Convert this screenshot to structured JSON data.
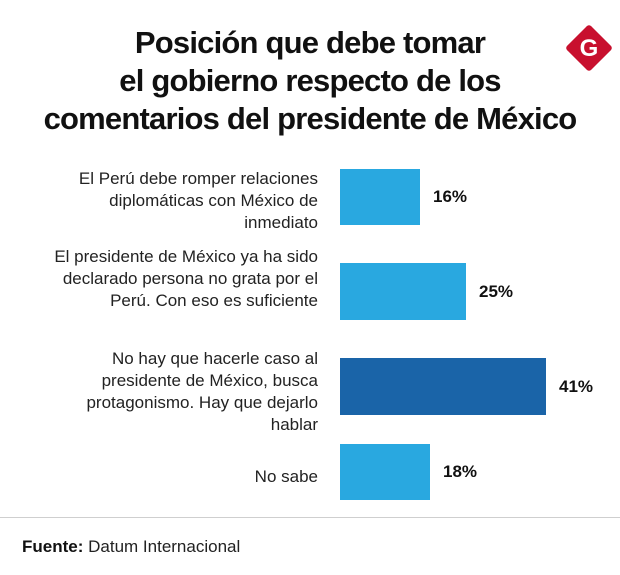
{
  "header": {
    "title_lines": [
      "Posición que debe tomar",
      "el gobierno respecto de los",
      "comentarios del presidente de México"
    ],
    "logo_letter": "G",
    "logo_color": "#c8102e"
  },
  "chart_data": {
    "type": "bar",
    "orientation": "horizontal",
    "title": "Posición que debe tomar el gobierno respecto de los comentarios del presidente de México",
    "xlim": [
      0,
      41
    ],
    "categories": [
      "El Perú debe romper relaciones diplomáticas con México de inmediato",
      "El presidente de México ya ha sido declarado persona no grata por el Perú. Con eso es suficiente",
      "No hay que hacerle caso al presidente de México, busca protagonismo. Hay que dejarlo hablar",
      "No sabe"
    ],
    "values": [
      16,
      25,
      41,
      18
    ],
    "value_labels": [
      "16%",
      "25%",
      "41%",
      "18%"
    ],
    "label_lines": [
      [
        "El Perú debe romper relaciones",
        "diplomáticas con México de",
        "inmediato"
      ],
      [
        "El presidente de México ya ha sido",
        "declarado persona no grata por el",
        "Perú. Con eso es suficiente"
      ],
      [
        "No hay que hacerle caso al",
        "presidente de México, busca",
        "protagonismo. Hay que dejarlo",
        "hablar"
      ],
      [
        "No sabe"
      ]
    ],
    "colors": [
      "#29a8e0",
      "#29a8e0",
      "#1a64a8",
      "#29a8e0"
    ],
    "highlight_index": 2
  },
  "footer": {
    "source_label": "Fuente:",
    "source_text": "Datum Internacional"
  }
}
